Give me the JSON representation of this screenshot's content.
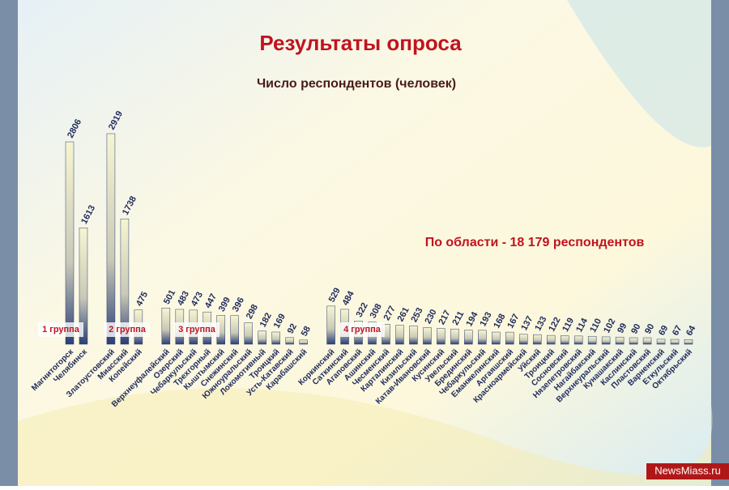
{
  "chart_data": {
    "type": "bar",
    "title": "Результаты опроса",
    "subtitle": "Число респондентов (человек)",
    "annotation": "По области - 18 179 респондентов",
    "group_labels": [
      "1 группа",
      "2 группа",
      "3 группа",
      "4 группа"
    ],
    "watermark": "NewsMiass.ru",
    "color": "#2b3f75",
    "categories": [
      "Магнитогорск",
      "Челябинск",
      null,
      "Златоустовский",
      "Миасский",
      "Копейский",
      null,
      "Верхнеуфалейский",
      "Озерский",
      "Чебаркульский",
      "Трехгорный",
      "Кыштымский",
      "Снежинский",
      "Южноуральский",
      "Локомотивный",
      "Троицкий",
      "Усть-Катавский",
      "Карабашский",
      null,
      "Коркинский",
      "Саткинский",
      "Агаповский",
      "Ашинский",
      "Чесменский",
      "Карталинский",
      "Кизильский",
      "Катав-Ивановский",
      "Кусинский",
      "Увельский",
      "Брединский",
      "Чебаркульский",
      "Еманжелинский",
      "Аргаяшский",
      "Красноармейский",
      "Уйский",
      "Троицкий",
      "Сосновский",
      "Нязепетровский",
      "Нагайбакский",
      "Верхнеуральский",
      "Кунашакский",
      "Каслинский",
      "Пластовский",
      "Варненский",
      "Еткульский",
      "Октябрьский"
    ],
    "values": [
      2806,
      1613,
      null,
      2919,
      1738,
      475,
      null,
      501,
      483,
      473,
      447,
      399,
      396,
      298,
      182,
      169,
      92,
      58,
      null,
      529,
      484,
      322,
      308,
      277,
      261,
      253,
      230,
      217,
      211,
      194,
      193,
      168,
      167,
      137,
      133,
      122,
      119,
      114,
      110,
      102,
      99,
      90,
      90,
      69,
      67,
      64
    ]
  }
}
